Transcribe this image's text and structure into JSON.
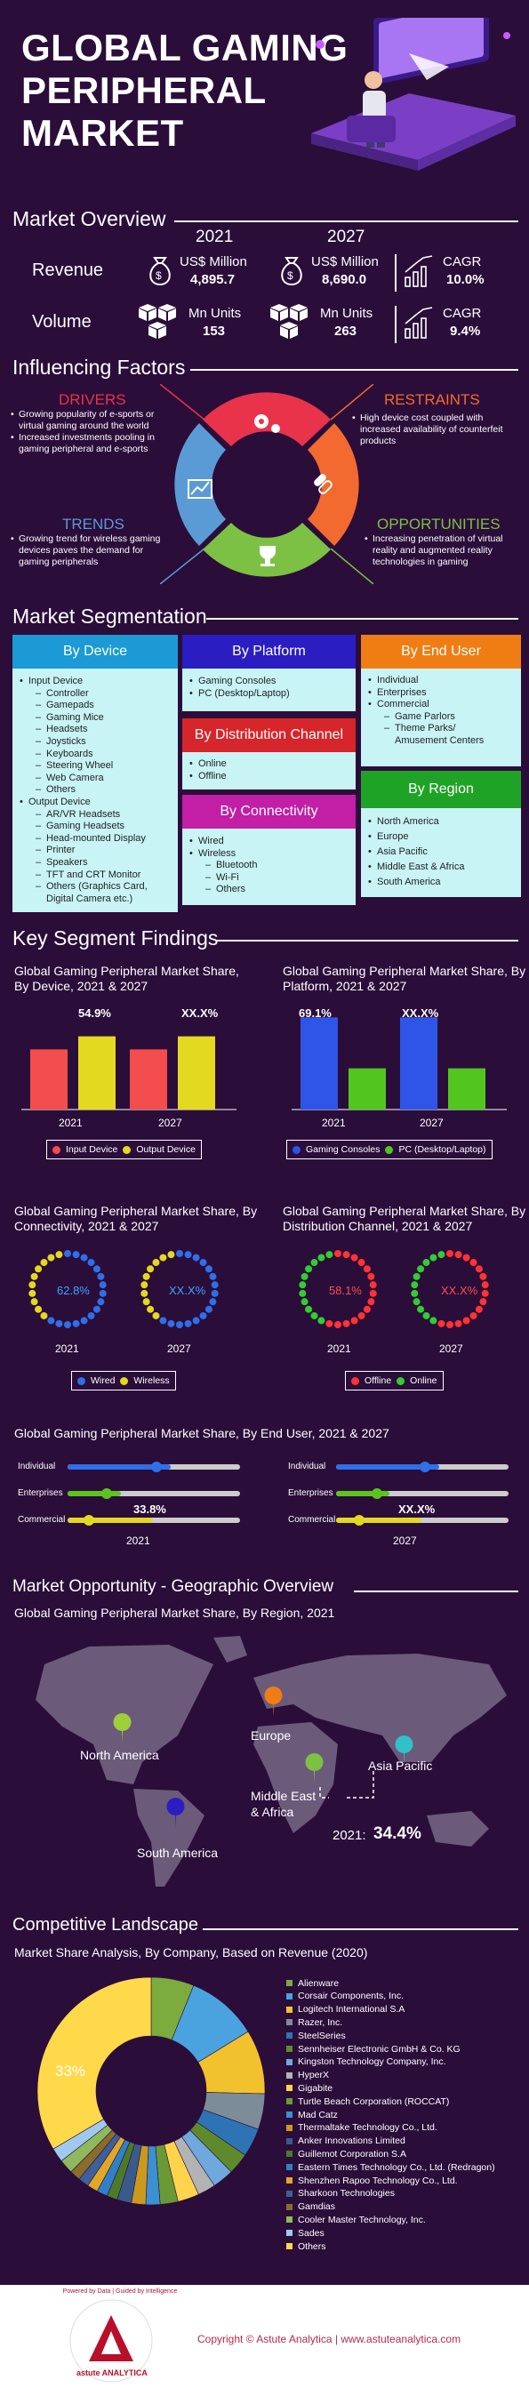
{
  "hero": {
    "title_lines": [
      "GLOBAL GAMING",
      "PERIPHERAL",
      "MARKET"
    ]
  },
  "overview": {
    "heading": "Market Overview",
    "years": [
      "2021",
      "2027"
    ],
    "revenue": {
      "label": "Revenue",
      "unit": "US$ Million",
      "v2021": "4,895.7",
      "v2027": "8,690.0",
      "cagr_label": "CAGR",
      "cagr": "10.0%"
    },
    "volume": {
      "label": "Volume",
      "unit": "Mn Units",
      "v2021": "153",
      "v2027": "263",
      "cagr_label": "CAGR",
      "cagr": "9.4%"
    }
  },
  "factors": {
    "heading": "Influencing Factors",
    "drivers": {
      "title": "DRIVERS",
      "color": "#e8334a",
      "items": [
        "Growing popularity of e-sports or virtual gaming around the world",
        "Increased investments pooling in gaming peripheral and e-sports"
      ]
    },
    "restraints": {
      "title": "RESTRAINTS",
      "color": "#f26a2f",
      "items": [
        "High device cost coupled with increased availability of counterfeit products"
      ]
    },
    "trends": {
      "title": "TRENDS",
      "color": "#5b9bd5",
      "items": [
        "Growing trend for wireless gaming devices paves the demand for gaming peripherals"
      ]
    },
    "opportunities": {
      "title": "OPPORTUNITIES",
      "color": "#7cc144",
      "items": [
        "Increasing penetration of virtual reality and augmented reality technologies in gaming"
      ]
    }
  },
  "segmentation": {
    "heading": "Market Segmentation",
    "device": {
      "title": "By Device",
      "color": "#1b9ad6"
    },
    "platform": {
      "title": "By Platform",
      "color": "#2a1ec2",
      "items": [
        "Gaming Consoles",
        "PC (Desktop/Laptop)"
      ]
    },
    "distribution": {
      "title": "By Distribution Channel",
      "color": "#d7262b",
      "items": [
        "Online",
        "Offline"
      ]
    },
    "connectivity": {
      "title": "By Connectivity",
      "color": "#c21ea6"
    },
    "end_user": {
      "title": "By End User",
      "color": "#f07d14"
    },
    "region": {
      "title": "By Region",
      "color": "#1fa327",
      "items": [
        "North America",
        "Europe",
        "Asia Pacific",
        "Middle East & Africa",
        "South America"
      ]
    },
    "device_items": [
      {
        "t": "Input Device",
        "l": 1
      },
      {
        "t": "Controller",
        "l": 2
      },
      {
        "t": "Gamepads",
        "l": 2
      },
      {
        "t": "Gaming Mice",
        "l": 2
      },
      {
        "t": "Headsets",
        "l": 2
      },
      {
        "t": "Joysticks",
        "l": 2
      },
      {
        "t": "Keyboards",
        "l": 2
      },
      {
        "t": "Steering Wheel",
        "l": 2
      },
      {
        "t": "Web Camera",
        "l": 2
      },
      {
        "t": "Others",
        "l": 2
      },
      {
        "t": "Output Device",
        "l": 1
      },
      {
        "t": "AR/VR Headsets",
        "l": 2
      },
      {
        "t": "Gaming Headsets",
        "l": 2
      },
      {
        "t": "Head-mounted Display",
        "l": 2
      },
      {
        "t": "Printer",
        "l": 2
      },
      {
        "t": "Speakers",
        "l": 2
      },
      {
        "t": "TFT and CRT Monitor",
        "l": 2
      },
      {
        "t": "Others (Graphics Card,",
        "l": 2
      },
      {
        "t": "Digital Camera etc.)",
        "l": 3
      }
    ],
    "connectivity_items": [
      {
        "t": "Wired",
        "l": 1
      },
      {
        "t": "Wireless",
        "l": 1
      },
      {
        "t": "Bluetooth",
        "l": 2
      },
      {
        "t": "Wi-Fi",
        "l": 2
      },
      {
        "t": "Others",
        "l": 2
      }
    ],
    "end_user_items": [
      {
        "t": "Individual",
        "l": 1
      },
      {
        "t": "Enterprises",
        "l": 1
      },
      {
        "t": "Commercial",
        "l": 1
      },
      {
        "t": "Game Parlors",
        "l": 2
      },
      {
        "t": "Theme Parks/",
        "l": 2
      },
      {
        "t": "Amusement Centers",
        "l": 3
      }
    ]
  },
  "findings": {
    "heading": "Key Segment Findings",
    "device_chart": {
      "title": "Global Gaming Peripheral Market Share, By Device, 2021 & 2027",
      "years": [
        "2021",
        "2027"
      ],
      "label_a": "54.9%",
      "label_b": "XX.X%"
    },
    "platform_chart": {
      "title": "Global Gaming Peripheral Market Share, By Platform, 2021 & 2027",
      "years": [
        "2021",
        "2027"
      ],
      "label_a": "69.1%",
      "label_b": "XX.X%"
    },
    "connectivity_chart": {
      "title": "Global Gaming Peripheral Market Share, By Connectivity, 2021 & 2027",
      "years": [
        "2021",
        "2027"
      ],
      "label_a": "62.8%",
      "label_b": "XX.X%"
    },
    "distribution_chart": {
      "title": "Global Gaming Peripheral Market Share, By Distribution Channel, 2021 & 2027",
      "years": [
        "2021",
        "2027"
      ],
      "label_a": "58.1%",
      "label_b": "XX.X%"
    },
    "enduser_chart": {
      "title": "Global Gaming Peripheral Market Share, By End User, 2021 & 2027",
      "years": [
        "2021",
        "2027"
      ],
      "label_a": "33.8%",
      "label_b": "XX.X%",
      "rows": [
        "Individual",
        "Enterprises",
        "Commercial"
      ]
    }
  },
  "geo": {
    "heading": "Market Opportunity - Geographic Overview",
    "subtitle": "Global Gaming Peripheral Market Share, By Region, 2021",
    "regions": [
      "North America",
      "Europe",
      "Asia Pacific",
      "Middle East",
      "& Africa",
      "South America"
    ],
    "highlight_year": "2021:",
    "highlight_value": "34.4%"
  },
  "competitive": {
    "heading": "Competitive Landscape",
    "subtitle": "Market Share Analysis, By Company, Based on Revenue (2020)",
    "share_label": "33%",
    "companies": [
      {
        "name": "Alienware",
        "color": "#7cab3e"
      },
      {
        "name": "Corsair Components, Inc.",
        "color": "#4aa3df"
      },
      {
        "name": "Logitech International S.A",
        "color": "#f2c12e"
      },
      {
        "name": "Razer, Inc.",
        "color": "#7d8c99"
      },
      {
        "name": "SteelSeries",
        "color": "#2e74b5"
      },
      {
        "name": "Sennheiser Electronic GmbH & Co. KG",
        "color": "#5e8a2c"
      },
      {
        "name": "Kingston Technology Company, Inc.",
        "color": "#6fa8dc"
      },
      {
        "name": "HyperX",
        "color": "#b3b3b3"
      },
      {
        "name": "Gigabite",
        "color": "#ffd44d"
      },
      {
        "name": "Turtle Beach Corporation (ROCCAT)",
        "color": "#6a9a35"
      },
      {
        "name": "Mad Catz",
        "color": "#3b8fd3"
      },
      {
        "name": "Thermaltake Technology Co., Ltd.",
        "color": "#c99a1e"
      },
      {
        "name": "Anker Innovations Limited",
        "color": "#3a5a8c"
      },
      {
        "name": "Guillemot Corporation S.A",
        "color": "#4d7a2a"
      },
      {
        "name": "Eastern Times Technology Co., Ltd. (Redragon)",
        "color": "#2f80c9"
      },
      {
        "name": "Shenzhen Rapoo Technology Co., Ltd.",
        "color": "#e0a826"
      },
      {
        "name": "Sharkoon Technologies",
        "color": "#3e5f9a"
      },
      {
        "name": "Gamdias",
        "color": "#8a6d2c"
      },
      {
        "name": "Cooler Master Technology, Inc.",
        "color": "#8fb95c"
      },
      {
        "name": "Sades",
        "color": "#9fc9ef"
      },
      {
        "name": "Others",
        "color": "#ffd94a"
      }
    ]
  },
  "footer": {
    "copyright": "Copyright © Astute Analytica | www.astuteanalytica.com",
    "logo_text": "Powered by Data | Guided by Intelligence",
    "logo_brand": "astute ANALYTICA"
  },
  "chart_data": [
    {
      "type": "bar",
      "title": "Global Gaming Peripheral Market Share, By Device, 2021 & 2027",
      "categories": [
        "2021",
        "2027"
      ],
      "series": [
        {
          "name": "Input Device",
          "values": [
            45.1,
            null
          ]
        },
        {
          "name": "Output Device",
          "values": [
            54.9,
            null
          ]
        }
      ]
    },
    {
      "type": "bar",
      "title": "Global Gaming Peripheral Market Share, By Platform, 2021 & 2027",
      "categories": [
        "2021",
        "2027"
      ],
      "series": [
        {
          "name": "Gaming Consoles",
          "values": [
            69.1,
            null
          ]
        },
        {
          "name": "PC (Desktop/Laptop)",
          "values": [
            30.9,
            null
          ]
        }
      ]
    },
    {
      "type": "pie",
      "title": "Global Gaming Peripheral Market Share, By Connectivity, 2021 & 2027",
      "categories": [
        "Wired",
        "Wireless"
      ],
      "values": [
        62.8,
        37.2
      ]
    },
    {
      "type": "pie",
      "title": "Global Gaming Peripheral Market Share, By Distribution Channel, 2021 & 2027",
      "categories": [
        "Offline",
        "Online"
      ],
      "values": [
        58.1,
        41.9
      ]
    },
    {
      "type": "pie",
      "title": "Market Share Analysis, By Company, Based on Revenue (2020)",
      "values": [
        33
      ]
    }
  ]
}
